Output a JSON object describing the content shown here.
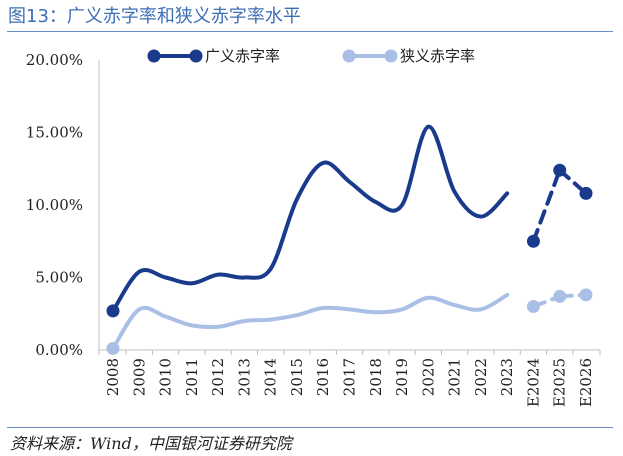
{
  "title": "图13：广义赤字率和狭义赤字率水平",
  "source": "资料来源：Wind，中国银河证券研究院",
  "colors": {
    "broad": "#1a3a8c",
    "narrow": "#a9bfe6",
    "title": "#3d6fb6",
    "rule": "#6b8fc4"
  },
  "chart_data": {
    "type": "line",
    "categories": [
      "2008",
      "2009",
      "2010",
      "2011",
      "2012",
      "2013",
      "2014",
      "2015",
      "2016",
      "2017",
      "2018",
      "2019",
      "2020",
      "2021",
      "2022",
      "2023",
      "E2024",
      "E2025",
      "E2026"
    ],
    "yticks": [
      "0.00%",
      "5.00%",
      "10.00%",
      "15.00%",
      "20.00%"
    ],
    "ylim": [
      0,
      20
    ],
    "legend_position": "top",
    "series": [
      {
        "name": "广义赤字率",
        "color": "#1a3a8c",
        "values": [
          2.7,
          5.4,
          5.0,
          4.6,
          5.2,
          5.0,
          5.6,
          10.4,
          12.9,
          11.6,
          10.2,
          10.0,
          15.4,
          10.9,
          9.2,
          10.8,
          7.5,
          12.4,
          10.8
        ],
        "markers": [
          0,
          16,
          17,
          18
        ],
        "dashed_from": 16
      },
      {
        "name": "狭义赤字率",
        "color": "#a9bfe6",
        "values": [
          0.1,
          2.8,
          2.3,
          1.7,
          1.6,
          2.0,
          2.1,
          2.4,
          2.9,
          2.8,
          2.6,
          2.8,
          3.6,
          3.1,
          2.8,
          3.8,
          3.0,
          3.7,
          3.8
        ],
        "markers": [
          0,
          16,
          17,
          18
        ],
        "dashed_from": 16
      }
    ]
  }
}
